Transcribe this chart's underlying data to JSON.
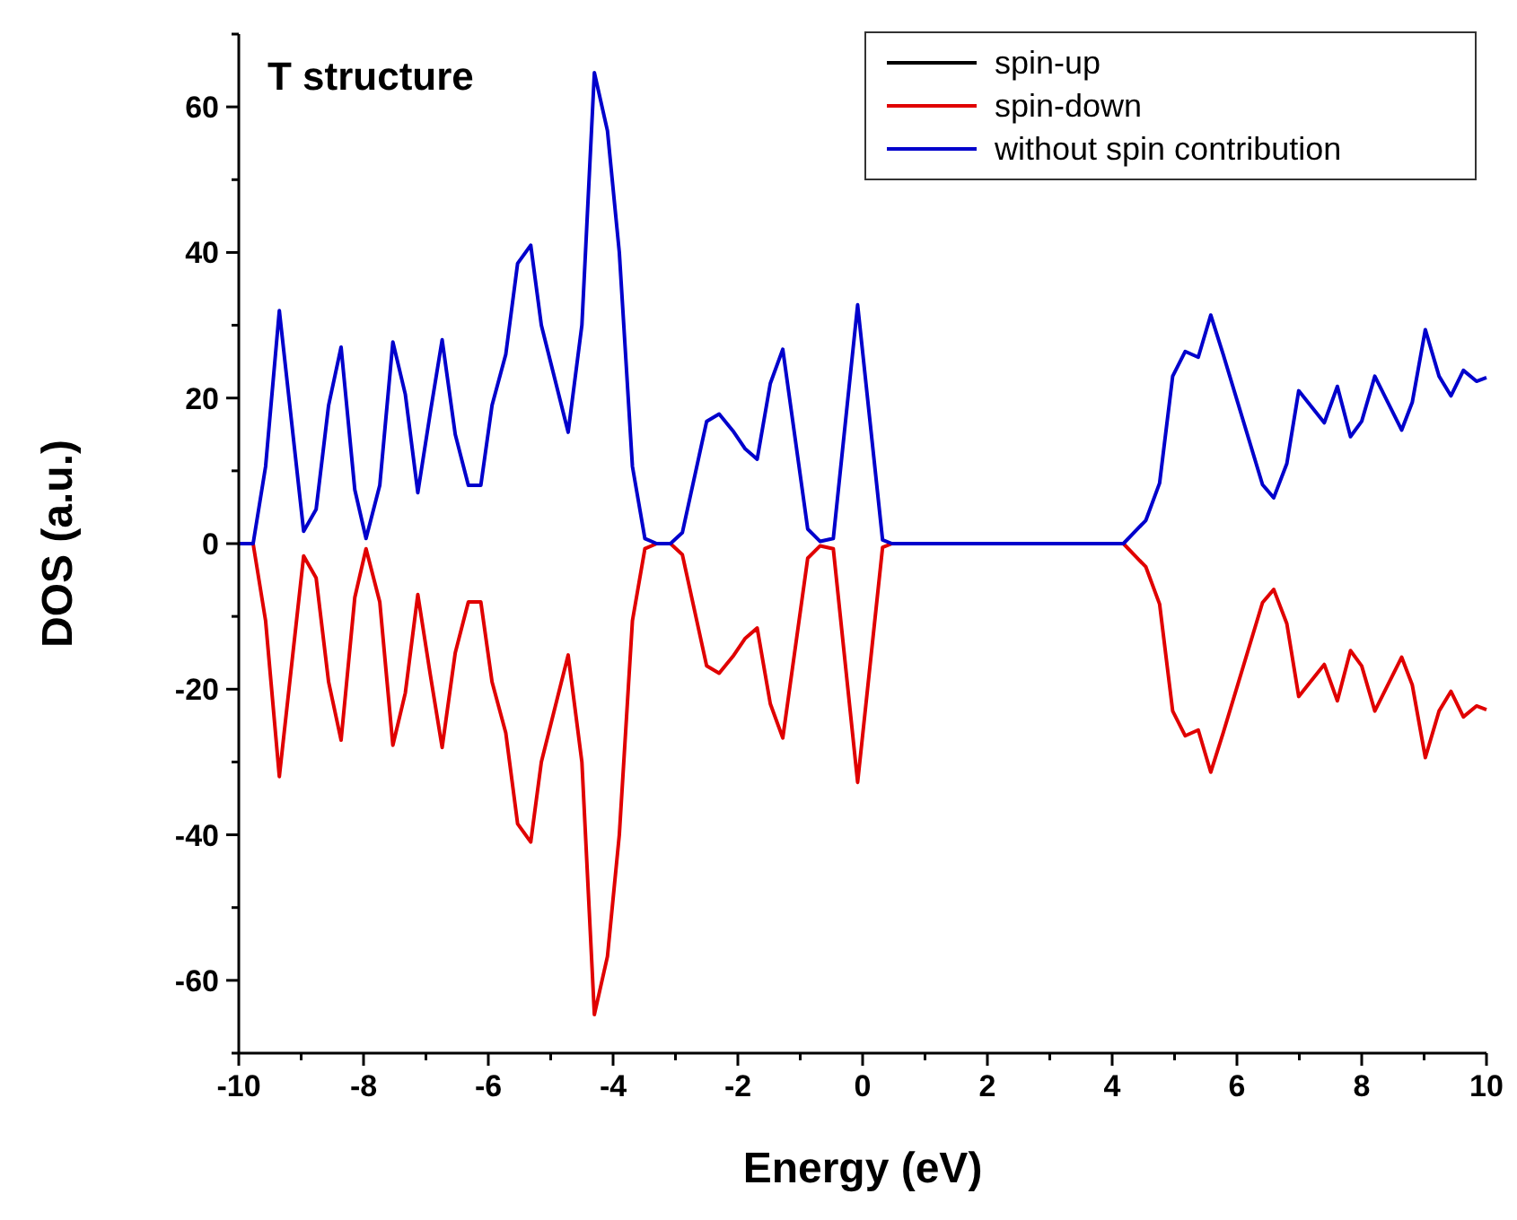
{
  "chart_data": {
    "type": "line",
    "title": "T structure",
    "xlabel": "Energy (eV)",
    "ylabel": "DOS (a.u.)",
    "x": [
      -10,
      -9.77,
      -9.57,
      -9.35,
      -8.96,
      -8.76,
      -8.56,
      -8.36,
      -8.14,
      -7.96,
      -7.74,
      -7.53,
      -7.33,
      -7.13,
      -6.93,
      -6.74,
      -6.53,
      -6.32,
      -6.12,
      -5.94,
      -5.72,
      -5.53,
      -5.32,
      -5.15,
      -4.72,
      -4.5,
      -4.3,
      -4.09,
      -3.9,
      -3.69,
      -3.49,
      -3.3,
      -3.08,
      -2.89,
      -2.5,
      -2.3,
      -2.08,
      -1.88,
      -1.69,
      -1.48,
      -1.28,
      -0.88,
      -0.68,
      -0.47,
      -0.08,
      0.32,
      0.47,
      4.18,
      4.54,
      4.76,
      4.97,
      5.17,
      5.38,
      5.58,
      5.78,
      6.41,
      6.59,
      6.8,
      6.99,
      7.4,
      7.61,
      7.82,
      8,
      8.21,
      8.64,
      8.81,
      9.02,
      9.24,
      9.43,
      9.63,
      9.84,
      10
    ],
    "series": [
      {
        "name": "spin-up",
        "color": "#000000",
        "values": [
          null,
          null,
          null,
          null,
          null,
          null,
          null,
          null,
          null,
          null,
          null,
          null,
          null,
          null,
          null,
          null,
          null,
          null,
          null,
          null,
          null,
          null,
          null,
          null,
          null,
          null,
          null,
          null,
          null,
          null,
          null,
          null,
          null,
          null,
          null,
          null,
          null,
          null,
          null,
          null,
          null,
          null,
          null,
          null,
          null,
          null,
          null,
          null,
          null,
          null,
          null,
          null,
          null,
          null,
          null,
          null,
          null,
          null,
          null,
          null,
          null,
          null,
          null,
          null,
          null,
          null,
          null,
          null,
          null,
          null,
          null,
          null
        ]
      },
      {
        "name": "spin-down",
        "color": "#e00000",
        "values": [
          0,
          0,
          -10.6,
          -32,
          -1.7,
          -4.7,
          -19,
          -27,
          -7.4,
          -0.7,
          -8,
          -27.7,
          -20.5,
          -7,
          -18,
          -28,
          -15,
          -8,
          -8,
          -19,
          -26,
          -38.5,
          -41,
          -30,
          -15.3,
          -30,
          -64.7,
          -56.7,
          -40,
          -10.6,
          -0.7,
          0,
          0,
          -1.5,
          -16.8,
          -17.8,
          -15.5,
          -13,
          -11.6,
          -22,
          -26.7,
          -2,
          -0.3,
          -0.7,
          -32.8,
          -0.5,
          0,
          0,
          -3.2,
          -8.3,
          -23,
          -26.4,
          -25.6,
          -31.4,
          -26,
          -8.1,
          -6.3,
          -11,
          -21,
          -16.6,
          -21.6,
          -14.7,
          -16.8,
          -23,
          -15.6,
          -19.4,
          -29.4,
          -23,
          -20.3,
          -23.8,
          -22.3,
          -22.8
        ]
      },
      {
        "name": "without spin contribution",
        "color": "#0000cc",
        "values": [
          0,
          0,
          10.6,
          32,
          1.7,
          4.7,
          19,
          27,
          7.4,
          0.7,
          8,
          27.7,
          20.5,
          7,
          18,
          28,
          15,
          8,
          8,
          19,
          26,
          38.5,
          41,
          30,
          15.3,
          30,
          64.7,
          56.7,
          40,
          10.6,
          0.7,
          0,
          0,
          1.5,
          16.8,
          17.8,
          15.5,
          13,
          11.6,
          22,
          26.7,
          2,
          0.3,
          0.7,
          32.8,
          0.5,
          0,
          0,
          3.2,
          8.3,
          23,
          26.4,
          25.6,
          31.4,
          26,
          8.1,
          6.3,
          11,
          21,
          16.6,
          21.6,
          14.7,
          16.8,
          23,
          15.6,
          19.4,
          29.4,
          23,
          20.3,
          23.8,
          22.3,
          22.8
        ]
      }
    ],
    "xlim": [
      -10,
      10
    ],
    "xticks": [
      -10,
      {
        "value": -9,
        "label": null
      },
      -8,
      {
        "value": -7,
        "label": null
      },
      -6,
      {
        "value": -5,
        "label": null
      },
      -4,
      {
        "value": -3,
        "label": null
      },
      -2,
      {
        "value": -1,
        "label": null
      },
      0,
      {
        "value": 1,
        "label": null
      },
      2,
      {
        "value": 3,
        "label": null
      },
      4,
      {
        "value": 5,
        "label": null
      },
      6,
      {
        "value": 7,
        "label": null
      },
      8,
      {
        "value": 9,
        "label": null
      },
      10
    ],
    "ylim": [
      -70,
      70
    ],
    "yticks": [
      {
        "value": -70,
        "label": null
      },
      -60,
      {
        "value": -50,
        "label": null
      },
      -40,
      {
        "value": -30,
        "label": null
      },
      -20,
      {
        "value": -10,
        "label": null
      },
      0,
      {
        "value": 10,
        "label": null
      },
      20,
      {
        "value": 30,
        "label": null
      },
      40,
      {
        "value": 50,
        "label": null
      },
      60,
      {
        "value": 70,
        "label": null
      }
    ],
    "grid": false,
    "legend": "top right",
    "marker": "none",
    "line_style": "solid"
  }
}
